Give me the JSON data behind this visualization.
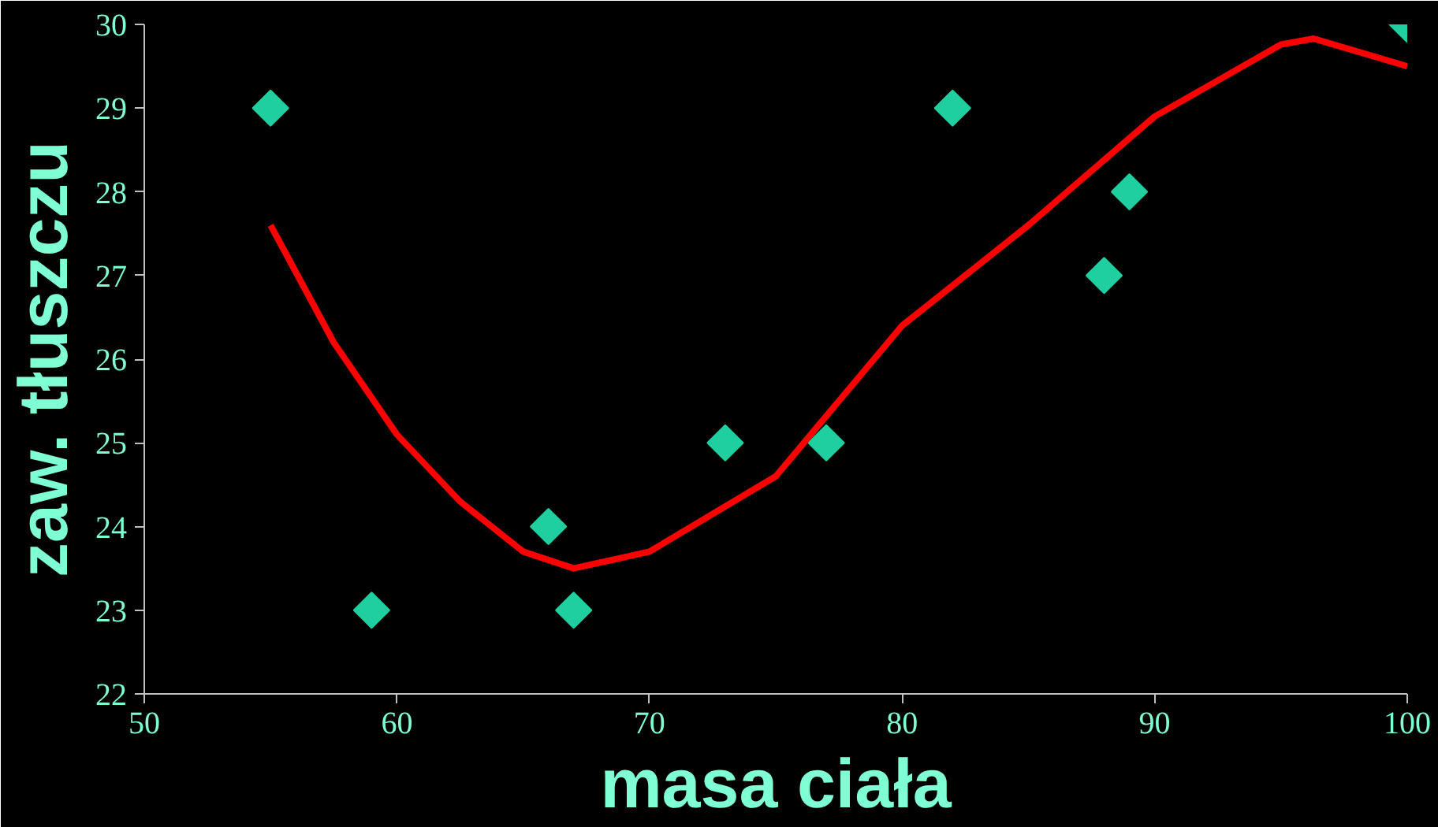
{
  "chart_data": {
    "type": "scatter",
    "xlabel": "masa ciała",
    "ylabel": "zaw. tłuszczu",
    "xlim": [
      50,
      100
    ],
    "xticks": [
      50,
      60,
      70,
      80,
      90,
      100
    ],
    "ylim": [
      22,
      30
    ],
    "yticks": [
      22,
      23,
      24,
      25,
      26,
      27,
      28,
      29,
      30
    ],
    "grid": false,
    "marker": "diamond",
    "series": [
      {
        "color": "#1fcf9f",
        "x": [
          55,
          59,
          66,
          67,
          73,
          77,
          82,
          88,
          89,
          100
        ],
        "values": [
          29,
          23,
          24,
          23,
          25,
          25,
          29,
          27,
          28,
          30
        ]
      },
      {
        "type": "line",
        "marker": "none",
        "color": "#ff0000",
        "x": [
          55,
          57.5,
          60,
          62.5,
          65,
          67,
          70,
          75,
          80,
          85,
          90,
          95,
          96.3,
          100
        ],
        "values": [
          27.6,
          26.2,
          25.1,
          24.3,
          23.7,
          23.5,
          23.7,
          24.6,
          26.4,
          27.6,
          28.9,
          29.76,
          29.83,
          29.5
        ]
      }
    ]
  }
}
